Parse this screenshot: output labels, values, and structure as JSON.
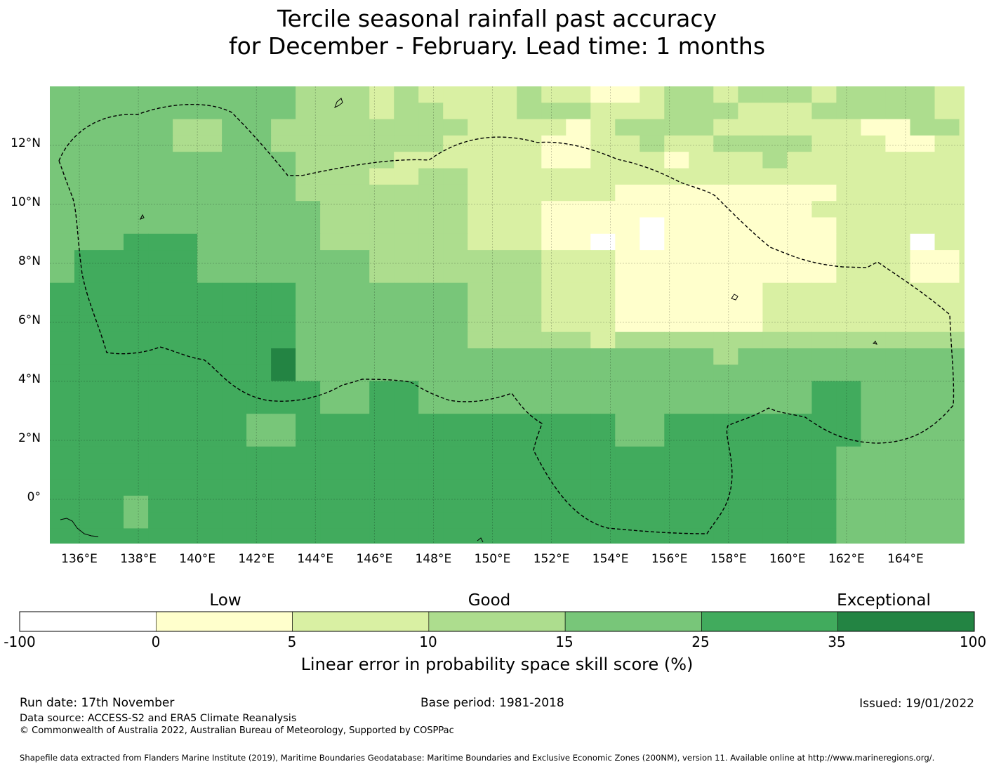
{
  "title": {
    "line1": "Tercile seasonal rainfall past accuracy",
    "line2": "for December - February. Lead time: 1 months"
  },
  "map": {
    "lon_labels": [
      "136°E",
      "138°E",
      "140°E",
      "142°E",
      "144°E",
      "146°E",
      "148°E",
      "150°E",
      "152°E",
      "154°E",
      "156°E",
      "158°E",
      "160°E",
      "162°E",
      "164°E"
    ],
    "lon_values": [
      136,
      138,
      140,
      142,
      144,
      146,
      148,
      150,
      152,
      154,
      156,
      158,
      160,
      162,
      164
    ],
    "lat_labels": [
      "12°N",
      "10°N",
      "8°N",
      "6°N",
      "4°N",
      "2°N",
      "0°"
    ],
    "lat_values": [
      12,
      10,
      8,
      6,
      4,
      2,
      0
    ],
    "lon_range": [
      135,
      166
    ],
    "lat_range": [
      -1.5,
      14
    ],
    "cell_grid": {
      "lon_start": 135,
      "lat_start": 14,
      "dlon": 0.833,
      "dlat": -0.555,
      "comment_classes": "0=white(-100..0) 1=0..5 2=5..10 3=10..15 4=15..25 5=25..35 6=35..100",
      "rows": [
        "444444444433323222232211233233323333223",
        "444444444433323322233322233322233333223",
        "444443344333333332222123333222222113322",
        "444443344333333322221122322333322211222",
        "444444444433332222221122212223222222222",
        "444444444433322332222222222222222222222",
        "444444444433333332222221111111112222222",
        "444444444443333332221111111111122222222",
        "444444444443333332221111011111112222222",
        "444555444443333332221101011111112220220",
        "455555444444433333332221111111112221122",
        "455555444444433333332221111111112221122",
        "555555555544444443332221111112222222221",
        "555555555544444443332221111112222222221",
        "555555555544444443332221111112222222221",
        "555555555544444443333323333333333333333",
        "555555555644444444444444444344444444444",
        "555555555644444444444444444444444444444",
        "555555555554455444444444444444455444444",
        "555555555554455444444444444444455444444",
        "555555554455555555555554455555555444444",
        "555555554455555555555554455555555444444",
        "555555555555555555555555555555554444444",
        "555555555555555555555555555555554444444",
        "555555555555555555555555555555554444444",
        "555455555555555555555555555555554444444",
        "555455555555555555555555555555554444444",
        "555555555555555555555555555555554444444",
        "555555555555555555555555555555554444444",
        "555555555555555555555555555555554444444"
      ]
    }
  },
  "colorbar": {
    "categories": [
      "Low",
      "Good",
      "Exceptional"
    ],
    "ticks": [
      "-100",
      "0",
      "5",
      "10",
      "15",
      "25",
      "35",
      "100"
    ],
    "colors": [
      "#ffffff",
      "#ffffcc",
      "#d9f0a3",
      "#addd8e",
      "#78c679",
      "#41ab5d",
      "#238443"
    ],
    "title": "Linear error in probability space skill score (%)"
  },
  "footer": {
    "run_date": "Run date: 17th November",
    "base_period": "Base period: 1981-2018",
    "issued": "Issued: 19/01/2022",
    "data_source": "Data source: ACCESS-S2 and ERA5 Climate Reanalysis",
    "copyright": "© Commonwealth of Australia 2022, Australian Bureau of Meteorology, Supported by COSPPac",
    "shapefile": "Shapefile data extracted from Flanders Marine Institute (2019), Maritime Boundaries Geodatabase: Maritime Boundaries and Exclusive Economic Zones (200NM), version 11. Available online at http://www.marineregions.org/."
  }
}
